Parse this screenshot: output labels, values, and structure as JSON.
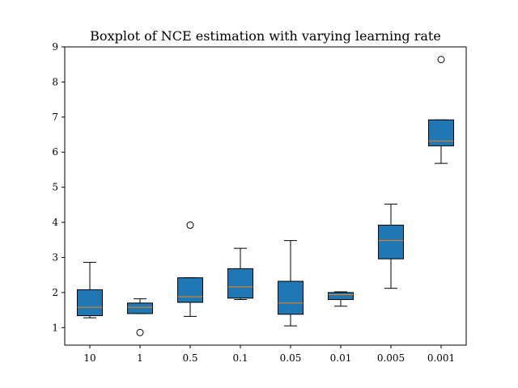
{
  "chart_data": {
    "type": "boxplot",
    "title": "Boxplot of NCE estimation with varying learning rate",
    "xlabel": "",
    "ylabel": "",
    "ylim": [
      0.5,
      9
    ],
    "yticks": [
      1,
      2,
      3,
      4,
      5,
      6,
      7,
      8,
      9
    ],
    "categories": [
      "10",
      "1",
      "0.5",
      "0.1",
      "0.05",
      "0.01",
      "0.005",
      "0.001"
    ],
    "boxes": [
      {
        "label": "10",
        "whisker_low": 1.28,
        "q1": 1.34,
        "median": 1.58,
        "q3": 2.08,
        "whisker_high": 2.86,
        "outliers": []
      },
      {
        "label": "1",
        "whisker_low": 1.4,
        "q1": 1.4,
        "median": 1.58,
        "q3": 1.7,
        "whisker_high": 1.82,
        "outliers": [
          0.86
        ]
      },
      {
        "label": "0.5",
        "whisker_low": 1.32,
        "q1": 1.72,
        "median": 1.88,
        "q3": 2.42,
        "whisker_high": 2.42,
        "outliers": [
          3.92
        ]
      },
      {
        "label": "0.1",
        "whisker_low": 1.8,
        "q1": 1.84,
        "median": 2.16,
        "q3": 2.68,
        "whisker_high": 3.26,
        "outliers": []
      },
      {
        "label": "0.05",
        "whisker_low": 1.05,
        "q1": 1.38,
        "median": 1.7,
        "q3": 2.32,
        "whisker_high": 3.48,
        "outliers": []
      },
      {
        "label": "0.01",
        "whisker_low": 1.61,
        "q1": 1.8,
        "median": 1.94,
        "q3": 2.0,
        "whisker_high": 2.02,
        "outliers": []
      },
      {
        "label": "0.005",
        "whisker_low": 2.12,
        "q1": 2.96,
        "median": 3.48,
        "q3": 3.92,
        "whisker_high": 4.52,
        "outliers": []
      },
      {
        "label": "0.001",
        "whisker_low": 5.68,
        "q1": 6.18,
        "median": 6.32,
        "q3": 6.92,
        "whisker_high": 6.92,
        "outliers": [
          8.64
        ]
      }
    ],
    "colors": {
      "box_fill": "#1f77b4",
      "median": "#ff7f0e",
      "edge": "#000000"
    },
    "grid": false
  }
}
